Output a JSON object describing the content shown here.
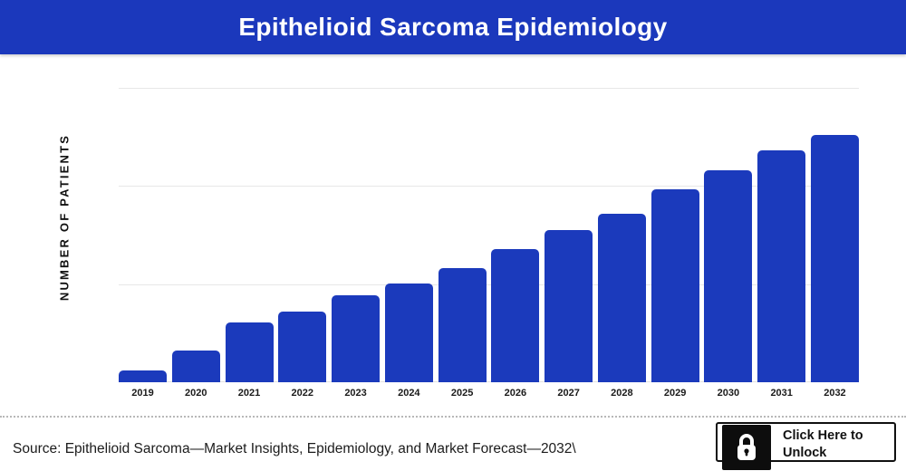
{
  "header": {
    "title": "Epithelioid Sarcoma Epidemiology",
    "background_color": "#1b38bc",
    "text_color": "#ffffff"
  },
  "chart_data": {
    "type": "bar",
    "title": "Epithelioid Sarcoma Epidemiology",
    "xlabel": "",
    "ylabel": "NUMBER OF PATIENTS",
    "categories": [
      "2019",
      "2020",
      "2021",
      "2022",
      "2023",
      "2024",
      "2025",
      "2026",
      "2027",
      "2028",
      "2029",
      "2030",
      "2031",
      "2032"
    ],
    "values_percent_of_max": [
      4.8,
      13.0,
      24.0,
      28.6,
      35.0,
      40.1,
      46.3,
      54.0,
      61.5,
      68.3,
      78.0,
      85.7,
      93.6,
      100.0
    ],
    "y_axis_tick_labels_visible": false,
    "gridlines": "horizontal",
    "grid_on": true,
    "legend_position": "none",
    "bar_color": "#1b3abc",
    "note": "Y-axis numeric tick labels are intentionally hidden/blurred in the source image; values are relative (2032 bar = 100)."
  },
  "footer": {
    "source_text": "Source: Epithelioid Sarcoma—Market Insights, Epidemiology, and Market Forecast—2032\\",
    "unlock_button": {
      "label_line1": "Click Here to",
      "label_line2": "Unlock",
      "icon": "lock-icon"
    }
  }
}
